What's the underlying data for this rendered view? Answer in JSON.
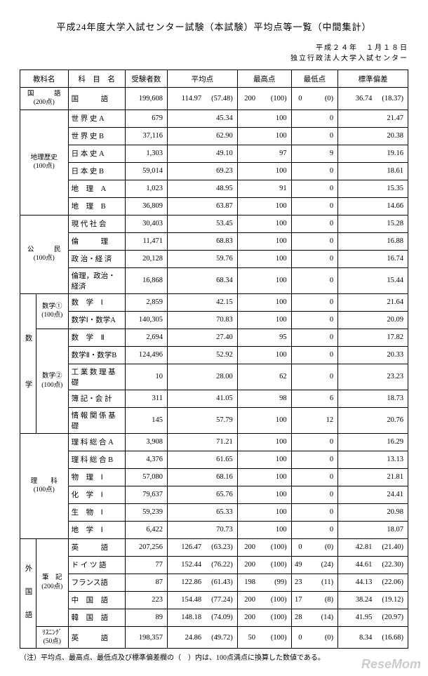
{
  "title": "平成24年度大学入試センター試験（本試験）平均点等一覧（中間集計）",
  "date_line1": "平成２４年　１月１８日",
  "date_line2": "独立行政法人大学入試センター",
  "headers": {
    "cat": "教科名",
    "subject": "科　目　名",
    "takers": "受験者数",
    "avg": "平均点",
    "max": "最高点",
    "min": "最低点",
    "sd": "標準偏差"
  },
  "cats": {
    "kokugo": {
      "label": "国　　　語",
      "points": "(200点)"
    },
    "chireki": {
      "label": "地理歴史",
      "points": "(100点)"
    },
    "koumin": {
      "label": "公　　　民",
      "points": "(100点)"
    },
    "suugaku": {
      "label": "数　　　学"
    },
    "suu1": {
      "label": "数学①",
      "points": "(100点)"
    },
    "suu2": {
      "label": "数学②",
      "points": "(100点)"
    },
    "rika": {
      "label": "理　　科",
      "points": "(100点)"
    },
    "gaikoku": {
      "label": "外　国　語"
    },
    "hikki": {
      "label": "筆　記",
      "points": "(200点)"
    },
    "listen": {
      "label": "ﾘｽﾆﾝｸﾞ",
      "points": "(50点)"
    }
  },
  "rows": [
    {
      "n": "国　　　語",
      "t": "199,608",
      "a": "114.97",
      "ap": "(57.48)",
      "mx": "200",
      "mxp": "(100)",
      "mn": "0",
      "mnp": "(0)",
      "s": "36.74",
      "sp": "(18.37)"
    },
    {
      "n": "世 界 史 A",
      "t": "679",
      "a": "45.34",
      "mx": "100",
      "mn": "0",
      "s": "21.47"
    },
    {
      "n": "世 界 史 B",
      "t": "37,116",
      "a": "62.90",
      "mx": "100",
      "mn": "0",
      "s": "20.38"
    },
    {
      "n": "日 本 史 A",
      "t": "1,303",
      "a": "49.10",
      "mx": "97",
      "mn": "9",
      "s": "19.16"
    },
    {
      "n": "日 本 史 B",
      "t": "59,014",
      "a": "69.23",
      "mx": "100",
      "mn": "0",
      "s": "18.61"
    },
    {
      "n": "地　理　A",
      "t": "1,023",
      "a": "48.95",
      "mx": "91",
      "mn": "0",
      "s": "15.35"
    },
    {
      "n": "地　理　B",
      "t": "36,809",
      "a": "63.87",
      "mx": "100",
      "mn": "0",
      "s": "14.66"
    },
    {
      "n": "現 代 社 会",
      "t": "30,403",
      "a": "53.45",
      "mx": "100",
      "mn": "0",
      "s": "15.28"
    },
    {
      "n": "倫　　　理",
      "t": "11,471",
      "a": "68.83",
      "mx": "100",
      "mn": "0",
      "s": "16.88"
    },
    {
      "n": "政 治・経 済",
      "t": "20,128",
      "a": "59.76",
      "mx": "100",
      "mn": "0",
      "s": "16.74"
    },
    {
      "n": "倫理，政治・経済",
      "t": "16,868",
      "a": "68.34",
      "mx": "100",
      "mn": "0",
      "s": "15.44"
    },
    {
      "n": "数　学　Ⅰ",
      "t": "2,859",
      "a": "42.15",
      "mx": "100",
      "mn": "0",
      "s": "21.64"
    },
    {
      "n": "数学Ⅰ・数学A",
      "t": "140,305",
      "a": "70.83",
      "mx": "100",
      "mn": "0",
      "s": "20.09"
    },
    {
      "n": "数　学　Ⅱ",
      "t": "2,694",
      "a": "27.40",
      "mx": "95",
      "mn": "0",
      "s": "17.82"
    },
    {
      "n": "数学Ⅱ・数学B",
      "t": "124,496",
      "a": "52.92",
      "mx": "100",
      "mn": "0",
      "s": "20.33"
    },
    {
      "n": "工 業 数 理 基 礎",
      "t": "10",
      "a": "28.00",
      "mx": "62",
      "mn": "0",
      "s": "23.23"
    },
    {
      "n": "簿 記・会 計",
      "t": "311",
      "a": "41.05",
      "mx": "98",
      "mn": "6",
      "s": "18.73"
    },
    {
      "n": "情 報 関 係 基 礎",
      "t": "145",
      "a": "57.79",
      "mx": "100",
      "mn": "12",
      "s": "20.76"
    },
    {
      "n": "理 科 総 合 A",
      "t": "3,908",
      "a": "71.21",
      "mx": "100",
      "mn": "0",
      "s": "16.29"
    },
    {
      "n": "理 科 総 合 B",
      "t": "4,376",
      "a": "61.65",
      "mx": "100",
      "mn": "0",
      "s": "13.13"
    },
    {
      "n": "物　理　Ⅰ",
      "t": "57,080",
      "a": "68.16",
      "mx": "100",
      "mn": "0",
      "s": "21.81"
    },
    {
      "n": "化　学　Ⅰ",
      "t": "79,637",
      "a": "65.76",
      "mx": "100",
      "mn": "0",
      "s": "24.41"
    },
    {
      "n": "生　物　Ⅰ",
      "t": "59,239",
      "a": "65.33",
      "mx": "100",
      "mn": "0",
      "s": "20.98"
    },
    {
      "n": "地　学　Ⅰ",
      "t": "6,422",
      "a": "70.73",
      "mx": "100",
      "mn": "0",
      "s": "18.07"
    },
    {
      "n": "英　　　語",
      "t": "207,256",
      "a": "126.47",
      "ap": "(63.23)",
      "mx": "200",
      "mxp": "(100)",
      "mn": "0",
      "mnp": "(0)",
      "s": "42.81",
      "sp": "(21.40)"
    },
    {
      "n": "ド イ ツ 語",
      "t": "77",
      "a": "152.44",
      "ap": "(76.22)",
      "mx": "200",
      "mxp": "(100)",
      "mn": "49",
      "mnp": "(24)",
      "s": "44.61",
      "sp": "(22.30)"
    },
    {
      "n": "フランス語",
      "t": "87",
      "a": "122.86",
      "ap": "(61.43)",
      "mx": "198",
      "mxp": "(99)",
      "mn": "23",
      "mnp": "(11)",
      "s": "44.13",
      "sp": "(22.06)"
    },
    {
      "n": "中　国　語",
      "t": "223",
      "a": "154.48",
      "ap": "(77.24)",
      "mx": "200",
      "mxp": "(100)",
      "mn": "17",
      "mnp": "(8)",
      "s": "38.24",
      "sp": "(19.12)"
    },
    {
      "n": "韓　国　語",
      "t": "89",
      "a": "148.18",
      "ap": "(74.09)",
      "mx": "200",
      "mxp": "(100)",
      "mn": "28",
      "mnp": "(14)",
      "s": "41.95",
      "sp": "(20.97)"
    },
    {
      "n": "英　　　語",
      "t": "198,357",
      "a": "24.86",
      "ap": "(49.72)",
      "mx": "50",
      "mxp": "(100)",
      "mn": "0",
      "mnp": "(0)",
      "s": "8.34",
      "sp": "(16.68)"
    }
  ],
  "note": "（注）平均点、最高点、最低点及び標準偏差欄の（　）内は、100点満点に換算した数値である。",
  "watermark": "ReseMom"
}
